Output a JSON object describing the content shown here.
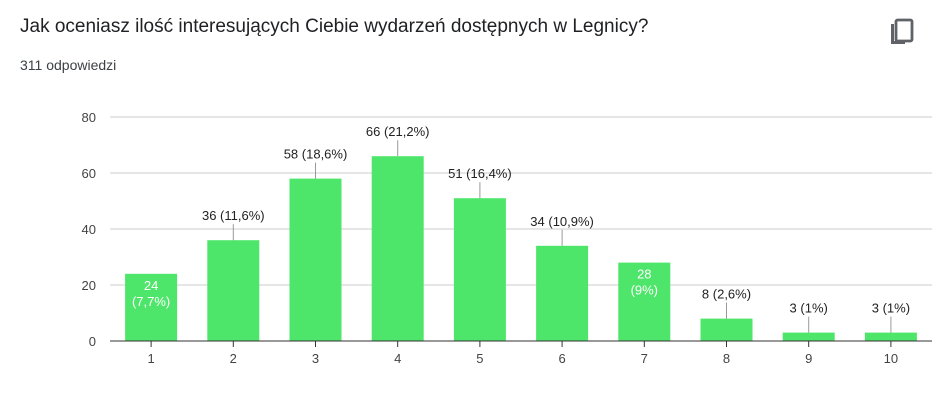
{
  "question": {
    "title": "Jak oceniasz ilość interesujących Ciebie wydarzeń dostępnych w Legnicy?",
    "responses": "311 odpowiedzi"
  },
  "icons": {
    "copy": "copy-icon"
  },
  "colors": {
    "bar": "#4ee66a",
    "grid": "#cccccc",
    "axis": "#333333",
    "leader": "#999999"
  },
  "chart_data": {
    "type": "bar",
    "categories": [
      "1",
      "2",
      "3",
      "4",
      "5",
      "6",
      "7",
      "8",
      "9",
      "10"
    ],
    "values": [
      24,
      36,
      58,
      66,
      51,
      34,
      28,
      8,
      3,
      3
    ],
    "percents": [
      "7,7%",
      "11,6%",
      "18,6%",
      "21,2%",
      "16,4%",
      "10,9%",
      "9%",
      "2,6%",
      "1%",
      "1%"
    ],
    "inside_label": [
      true,
      false,
      false,
      false,
      false,
      false,
      true,
      false,
      false,
      false
    ],
    "ylim": [
      0,
      80
    ],
    "yticks": [
      0,
      20,
      40,
      60,
      80
    ],
    "grid": true,
    "title": "",
    "xlabel": "",
    "ylabel": ""
  }
}
